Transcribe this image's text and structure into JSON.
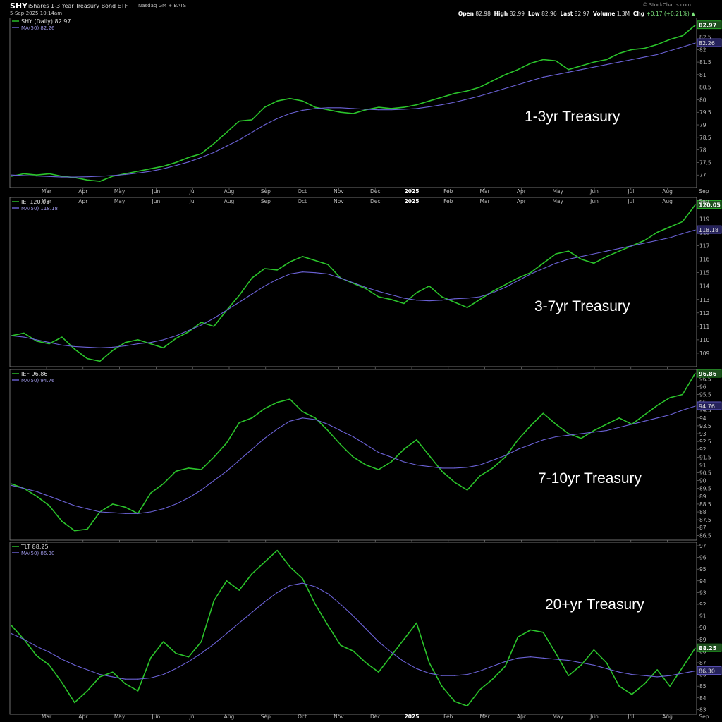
{
  "header": {
    "ticker": "SHY",
    "name": "iShares 1-3 Year Treasury Bond ETF",
    "exchange": "Nasdaq GM + BATS",
    "date": "5-Sep-2025 10:14am",
    "brand": "© StockCharts.com",
    "open_label": "Open",
    "open": "82.98",
    "high_label": "High",
    "high": "82.99",
    "low_label": "Low",
    "low": "82.96",
    "last_label": "Last",
    "last": "82.97",
    "volume_label": "Volume",
    "volume": "1.3M",
    "chg_label": "Chg",
    "chg": "+0.17 (+0.21%)",
    "chg_icon": "up-triangle-icon"
  },
  "colors": {
    "price_line": "#2bc42b",
    "ma_line": "#6b62d6",
    "background": "#000000",
    "panel_border": "#8a8a8a",
    "text": "#dddddd"
  },
  "x_axis_labels": [
    "Mar",
    "Apr",
    "May",
    "Jun",
    "Jul",
    "Aug",
    "Sep",
    "Oct",
    "Nov",
    "Dec",
    "2025",
    "Feb",
    "Mar",
    "Apr",
    "May",
    "Jun",
    "Jul",
    "Aug",
    "Sep"
  ],
  "chart_data": [
    {
      "type": "line",
      "panel_label": "1-3yr Treasury",
      "legend": [
        {
          "name": "SHY (Daily) 82.97"
        },
        {
          "name": "MA(50) 82.26"
        }
      ],
      "last_value": "82.97",
      "ma_value": "82.26",
      "y_ticks": [
        77.0,
        77.5,
        78.0,
        78.5,
        79.0,
        79.5,
        80.0,
        80.5,
        81.0,
        81.5,
        82.0,
        82.5
      ],
      "ylim": [
        76.5,
        83.3
      ],
      "series": [
        {
          "name": "SHY",
          "values": [
            76.95,
            77.05,
            77.0,
            77.05,
            76.95,
            76.9,
            76.8,
            76.75,
            76.95,
            77.05,
            77.15,
            77.25,
            77.35,
            77.5,
            77.7,
            77.85,
            78.25,
            78.7,
            79.15,
            79.2,
            79.7,
            79.95,
            80.05,
            79.95,
            79.7,
            79.6,
            79.5,
            79.45,
            79.6,
            79.7,
            79.65,
            79.7,
            79.8,
            79.95,
            80.1,
            80.25,
            80.35,
            80.5,
            80.75,
            81.0,
            81.2,
            81.45,
            81.6,
            81.55,
            81.2,
            81.35,
            81.5,
            81.6,
            81.85,
            82.0,
            82.05,
            82.2,
            82.4,
            82.55,
            82.97
          ]
        },
        {
          "name": "MA(50)",
          "values": [
            77.0,
            76.98,
            76.96,
            76.94,
            76.92,
            76.92,
            76.93,
            76.95,
            76.98,
            77.02,
            77.08,
            77.15,
            77.25,
            77.38,
            77.52,
            77.7,
            77.9,
            78.15,
            78.4,
            78.7,
            79.0,
            79.25,
            79.45,
            79.58,
            79.65,
            79.68,
            79.68,
            79.65,
            79.62,
            79.6,
            79.6,
            79.62,
            79.65,
            79.72,
            79.8,
            79.9,
            80.02,
            80.15,
            80.3,
            80.45,
            80.6,
            80.75,
            80.9,
            81.0,
            81.1,
            81.2,
            81.3,
            81.4,
            81.5,
            81.6,
            81.7,
            81.8,
            81.95,
            82.1,
            82.26
          ]
        }
      ]
    },
    {
      "type": "line",
      "panel_label": "3-7yr Treasury",
      "legend": [
        {
          "name": "IEI 120.05"
        },
        {
          "name": "MA(50) 118.18"
        }
      ],
      "last_value": "120.05",
      "ma_value": "118.18",
      "y_ticks": [
        109,
        110,
        111,
        112,
        113,
        114,
        115,
        116,
        117,
        118,
        119
      ],
      "ylim": [
        108.0,
        120.6
      ],
      "series": [
        {
          "name": "IEI",
          "values": [
            110.3,
            110.5,
            109.9,
            109.7,
            110.2,
            109.3,
            108.6,
            108.4,
            109.2,
            109.8,
            110.0,
            109.7,
            109.4,
            110.1,
            110.6,
            111.3,
            111.0,
            112.2,
            113.3,
            114.6,
            115.3,
            115.2,
            115.8,
            116.2,
            115.9,
            115.6,
            114.6,
            114.2,
            113.8,
            113.2,
            113.0,
            112.7,
            113.5,
            114.0,
            113.2,
            112.8,
            112.4,
            113.0,
            113.6,
            114.1,
            114.6,
            115.0,
            115.7,
            116.4,
            116.6,
            116.0,
            115.7,
            116.2,
            116.6,
            117.0,
            117.4,
            118.0,
            118.4,
            118.8,
            120.05
          ]
        },
        {
          "name": "MA(50)",
          "values": [
            110.3,
            110.2,
            110.0,
            109.8,
            109.6,
            109.5,
            109.45,
            109.4,
            109.45,
            109.55,
            109.7,
            109.8,
            110.0,
            110.3,
            110.7,
            111.1,
            111.6,
            112.2,
            112.8,
            113.4,
            114.0,
            114.5,
            114.9,
            115.05,
            115.0,
            114.9,
            114.6,
            114.25,
            113.9,
            113.6,
            113.35,
            113.1,
            112.95,
            112.9,
            112.95,
            113.05,
            113.1,
            113.2,
            113.5,
            113.9,
            114.4,
            114.9,
            115.3,
            115.7,
            116.0,
            116.2,
            116.4,
            116.6,
            116.8,
            117.0,
            117.2,
            117.4,
            117.6,
            117.9,
            118.18
          ]
        }
      ]
    },
    {
      "type": "line",
      "panel_label": "7-10yr Treasury",
      "legend": [
        {
          "name": "IEF 96.86"
        },
        {
          "name": "MA(50) 94.76"
        }
      ],
      "last_value": "96.86",
      "ma_value": "94.76",
      "y_ticks": [
        86.5,
        87.0,
        87.5,
        88.0,
        88.5,
        89.0,
        89.5,
        90.0,
        90.5,
        91.0,
        91.5,
        92.0,
        92.5,
        93.0,
        93.5,
        94.0,
        94.5,
        95.0,
        95.5,
        96.0,
        96.5
      ],
      "ylim": [
        86.2,
        97.1
      ],
      "series": [
        {
          "name": "IEF",
          "values": [
            89.8,
            89.5,
            89.0,
            88.4,
            87.4,
            86.8,
            86.9,
            88.0,
            88.5,
            88.3,
            87.9,
            89.2,
            89.8,
            90.6,
            90.8,
            90.7,
            91.5,
            92.4,
            93.7,
            94.0,
            94.6,
            95.0,
            95.2,
            94.4,
            94.0,
            93.2,
            92.3,
            91.5,
            91.0,
            90.7,
            91.2,
            92.0,
            92.6,
            91.6,
            90.6,
            89.9,
            89.4,
            90.3,
            90.8,
            91.5,
            92.6,
            93.5,
            94.3,
            93.6,
            93.0,
            92.7,
            93.2,
            93.6,
            94.0,
            93.6,
            94.2,
            94.8,
            95.3,
            95.5,
            96.86
          ]
        },
        {
          "name": "MA(50)",
          "values": [
            89.7,
            89.5,
            89.3,
            89.0,
            88.7,
            88.4,
            88.2,
            88.0,
            87.95,
            87.9,
            87.9,
            88.0,
            88.2,
            88.5,
            88.9,
            89.4,
            90.0,
            90.6,
            91.3,
            92.0,
            92.7,
            93.3,
            93.8,
            94.0,
            93.9,
            93.6,
            93.2,
            92.8,
            92.3,
            91.8,
            91.5,
            91.2,
            91.0,
            90.9,
            90.8,
            90.8,
            90.85,
            91.0,
            91.3,
            91.6,
            92.0,
            92.3,
            92.6,
            92.8,
            92.9,
            93.0,
            93.1,
            93.2,
            93.4,
            93.6,
            93.8,
            94.0,
            94.2,
            94.5,
            94.76
          ]
        }
      ]
    },
    {
      "type": "line",
      "panel_label": "20+yr Treasury",
      "legend": [
        {
          "name": "TLT 88.25"
        },
        {
          "name": "MA(50) 86.30"
        }
      ],
      "last_value": "88.25",
      "ma_value": "86.30",
      "y_ticks": [
        83,
        84,
        85,
        86,
        87,
        88,
        89,
        90,
        91,
        92,
        93,
        94,
        95,
        96,
        97
      ],
      "ylim": [
        82.6,
        97.3
      ],
      "series": [
        {
          "name": "TLT",
          "values": [
            90.2,
            89.0,
            87.6,
            86.8,
            85.3,
            83.6,
            84.6,
            85.8,
            86.2,
            85.2,
            84.6,
            87.4,
            88.8,
            87.8,
            87.5,
            88.8,
            92.3,
            94.0,
            93.2,
            94.6,
            95.6,
            96.6,
            95.2,
            94.2,
            92.0,
            90.2,
            88.5,
            88.0,
            87.0,
            86.2,
            87.6,
            89.0,
            90.4,
            87.0,
            85.0,
            83.7,
            83.3,
            84.7,
            85.6,
            86.7,
            89.2,
            89.8,
            89.6,
            87.8,
            85.9,
            86.8,
            88.1,
            87.0,
            85.0,
            84.3,
            85.2,
            86.4,
            85.0,
            86.6,
            88.25
          ]
        },
        {
          "name": "MA(50)",
          "values": [
            89.5,
            89.0,
            88.4,
            87.9,
            87.3,
            86.8,
            86.4,
            86.0,
            85.8,
            85.6,
            85.6,
            85.7,
            86.0,
            86.5,
            87.1,
            87.8,
            88.6,
            89.5,
            90.4,
            91.3,
            92.2,
            93.0,
            93.6,
            93.8,
            93.5,
            92.9,
            92.0,
            91.0,
            89.9,
            88.8,
            87.9,
            87.1,
            86.5,
            86.1,
            85.9,
            85.9,
            86.0,
            86.3,
            86.7,
            87.1,
            87.4,
            87.5,
            87.4,
            87.3,
            87.2,
            87.0,
            86.8,
            86.5,
            86.2,
            86.0,
            85.9,
            85.8,
            85.9,
            86.1,
            86.3
          ]
        }
      ]
    }
  ]
}
